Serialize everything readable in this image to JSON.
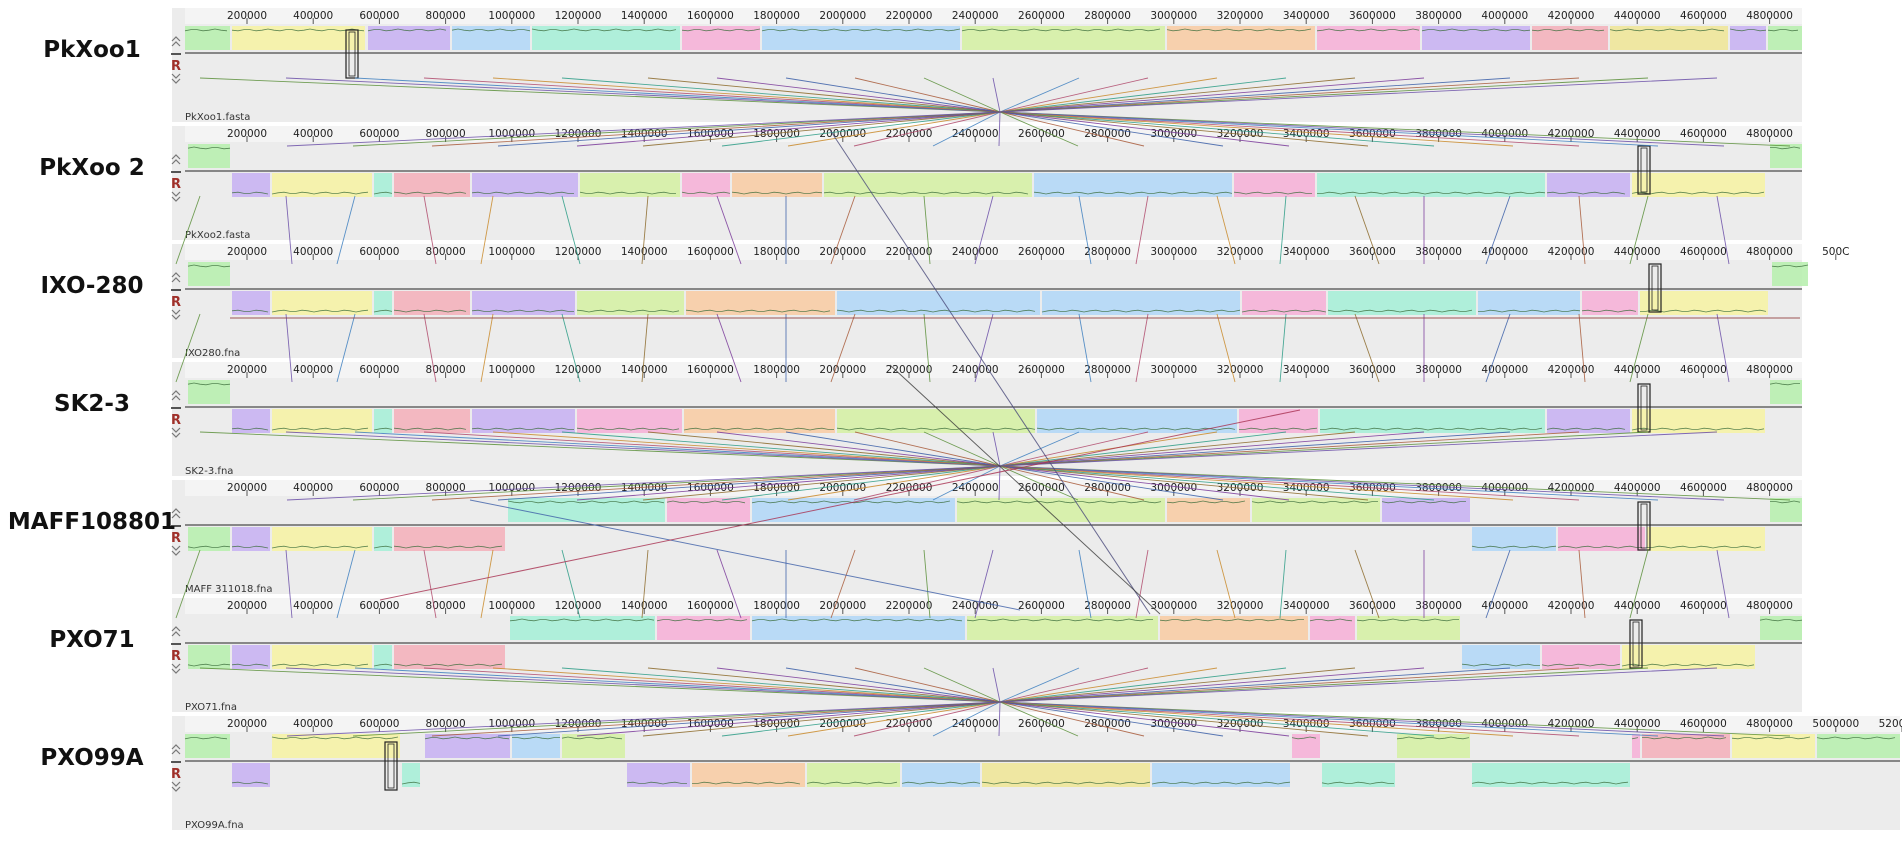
{
  "viewer": {
    "control_labels": {
      "reverse": "R"
    }
  },
  "genomes": [
    {
      "label": "PkXoo1",
      "file": "PkXoo1.fasta",
      "ticks": [
        "200000",
        "400000",
        "600000",
        "800000",
        "1000000",
        "1200000",
        "1400000",
        "1600000",
        "1800000",
        "2000000",
        "2200000",
        "2400000",
        "2600000",
        "2800000",
        "3000000",
        "3200000",
        "3400000",
        "3600000",
        "3800000",
        "4000000",
        "4200000",
        "4400000",
        "4600000",
        "4800000"
      ]
    },
    {
      "label": "PkXoo 2",
      "file": "PkXoo2.fasta",
      "ticks": [
        "200000",
        "400000",
        "600000",
        "800000",
        "1000000",
        "1200000",
        "1400000",
        "1600000",
        "1800000",
        "2000000",
        "2200000",
        "2400000",
        "2600000",
        "2800000",
        "3000000",
        "3200000",
        "3400000",
        "3600000",
        "3800000",
        "4000000",
        "4200000",
        "4400000",
        "4600000",
        "4800000"
      ]
    },
    {
      "label": "IXO-280",
      "file": "IXO280.fna",
      "ticks": [
        "200000",
        "400000",
        "600000",
        "800000",
        "1000000",
        "1200000",
        "1400000",
        "1600000",
        "1800000",
        "2000000",
        "2200000",
        "2400000",
        "2600000",
        "2800000",
        "3000000",
        "3200000",
        "3400000",
        "3600000",
        "3800000",
        "4000000",
        "4200000",
        "4400000",
        "4600000",
        "4800000",
        "500C"
      ]
    },
    {
      "label": "SK2-3",
      "file": "SK2-3.fna",
      "ticks": [
        "200000",
        "400000",
        "600000",
        "800000",
        "1000000",
        "1200000",
        "1400000",
        "1600000",
        "1800000",
        "2000000",
        "2200000",
        "2400000",
        "2600000",
        "2800000",
        "3000000",
        "3200000",
        "3400000",
        "3600000",
        "3800000",
        "4000000",
        "4200000",
        "4400000",
        "4600000",
        "4800000"
      ]
    },
    {
      "label": "MAFF108801",
      "file": "MAFF 311018.fna",
      "ticks": [
        "200000",
        "400000",
        "600000",
        "800000",
        "1000000",
        "1200000",
        "1400000",
        "1600000",
        "1800000",
        "2000000",
        "2200000",
        "2400000",
        "2600000",
        "2800000",
        "3000000",
        "3200000",
        "3400000",
        "3600000",
        "3800000",
        "4000000",
        "4200000",
        "4400000",
        "4600000",
        "4800000"
      ]
    },
    {
      "label": "PXO71",
      "file": "PXO71.fna",
      "ticks": [
        "200000",
        "400000",
        "600000",
        "800000",
        "1000000",
        "1200000",
        "1400000",
        "1600000",
        "1800000",
        "2000000",
        "2200000",
        "2400000",
        "2600000",
        "2800000",
        "3000000",
        "3200000",
        "3400000",
        "3600000",
        "3800000",
        "4000000",
        "4200000",
        "4400000",
        "4600000",
        "4800000"
      ]
    },
    {
      "label": "PXO99A",
      "file": "PXO99A.fna",
      "ticks": [
        "200000",
        "400000",
        "600000",
        "800000",
        "1000000",
        "1200000",
        "1400000",
        "1600000",
        "1800000",
        "2000000",
        "2200000",
        "2400000",
        "2600000",
        "2800000",
        "3000000",
        "3200000",
        "3400000",
        "3600000",
        "3800000",
        "4000000",
        "4200000",
        "4400000",
        "4600000",
        "4800000",
        "5000000",
        "5200000"
      ]
    }
  ],
  "colors": {
    "panel_bg": "#ececec",
    "lcb": [
      "#b9f0b0",
      "#f6f3a6",
      "#c9b4f3",
      "#b4d8f7",
      "#a9f0d8",
      "#f6b3d8",
      "#f8cda6",
      "#d6f1a6",
      "#f4b3bd",
      "#f0e79a"
    ]
  }
}
